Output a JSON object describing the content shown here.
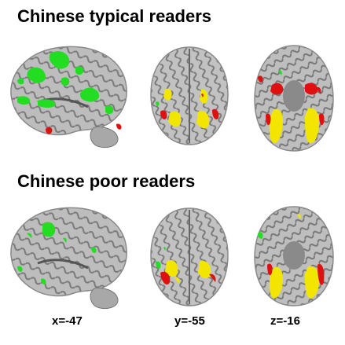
{
  "headings": {
    "top": "Chinese typical readers",
    "bottom": "Chinese poor readers"
  },
  "coordinates": {
    "sagittal": "x=-47",
    "coronal": "y=-55",
    "axial": "z=-16"
  },
  "colors": {
    "green": "#22dd22",
    "yellow": "#f2e600",
    "red": "#e01010",
    "brain_light": "#c8c8c8",
    "brain_dark": "#6e6e6e"
  }
}
